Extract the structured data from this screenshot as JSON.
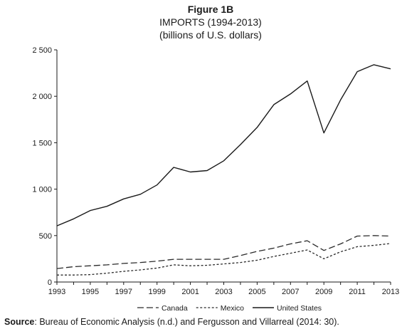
{
  "chart_data": {
    "type": "line",
    "figure_label": "Figure 1B",
    "title": "IMPORTS (1994-2013)",
    "subtitle": "(billions of U.S. dollars)",
    "x": [
      1993,
      1994,
      1995,
      1996,
      1997,
      1998,
      1999,
      2000,
      2001,
      2002,
      2003,
      2004,
      2005,
      2006,
      2007,
      2008,
      2009,
      2010,
      2011,
      2012,
      2013
    ],
    "x_tick_labels": [
      "1993",
      "1995",
      "1997",
      "1999",
      "2001",
      "2003",
      "2005",
      "2007",
      "2009",
      "2011",
      "2013"
    ],
    "y_tick_labels": [
      "0",
      "500",
      "1 000",
      "1 500",
      "2 000",
      "2 500"
    ],
    "y_ticks": [
      0,
      500,
      1000,
      1500,
      2000,
      2500
    ],
    "ylim": [
      0,
      2500
    ],
    "xlim": [
      1993,
      2013
    ],
    "grid": false,
    "legend_position": "bottom",
    "series": [
      {
        "name": "Canada",
        "style": "long-dash",
        "color": "#2a2a2a",
        "values": [
          145,
          165,
          175,
          185,
          200,
          210,
          225,
          245,
          245,
          245,
          245,
          285,
          330,
          365,
          410,
          445,
          340,
          410,
          495,
          500,
          495
        ]
      },
      {
        "name": "Mexico",
        "style": "short-dash",
        "color": "#2a2a2a",
        "values": [
          75,
          75,
          80,
          95,
          115,
          130,
          150,
          185,
          175,
          180,
          195,
          210,
          235,
          275,
          310,
          345,
          250,
          325,
          380,
          395,
          415
        ]
      },
      {
        "name": "United States",
        "style": "solid",
        "color": "#1a1a1a",
        "values": [
          605,
          680,
          770,
          815,
          895,
          945,
          1045,
          1235,
          1185,
          1200,
          1305,
          1480,
          1665,
          1910,
          2025,
          2165,
          1605,
          1960,
          2265,
          2340,
          2295
        ]
      }
    ]
  },
  "source": {
    "label": "Source",
    "text": ": Bureau of Economic Analysis (n.d.) and Fergusson and Villarreal (2014: 30)."
  }
}
